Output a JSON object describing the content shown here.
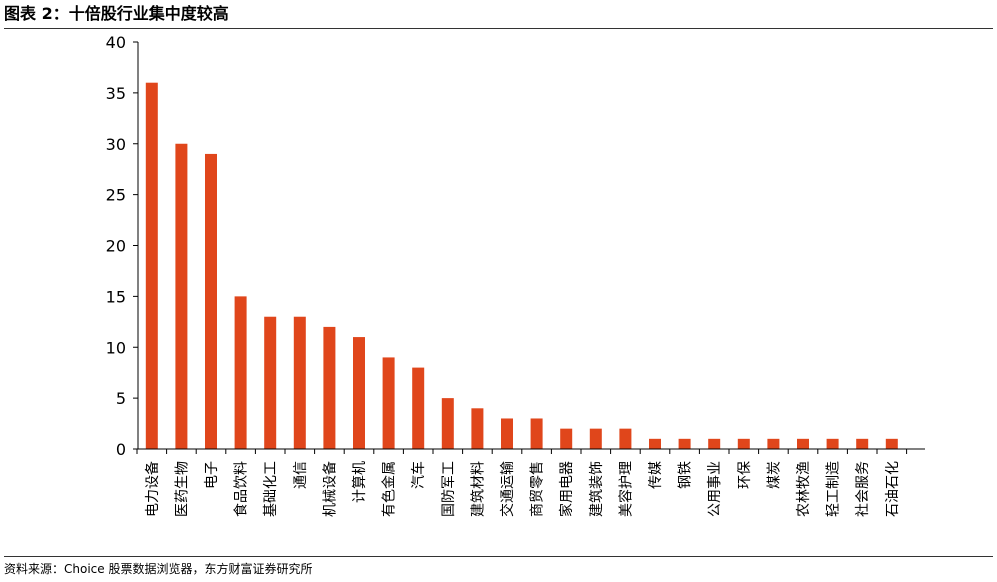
{
  "title": "图表 2：十倍股行业集中度较高",
  "source": "资料来源：Choice 股票数据浏览器，东方财富证券研究所",
  "colors": {
    "bar": "#E0461B",
    "axis": "#000000"
  },
  "chart_data": {
    "type": "bar",
    "title": "",
    "xlabel": "",
    "ylabel": "",
    "ylim": [
      0,
      40
    ],
    "yticks": [
      0,
      5,
      10,
      15,
      20,
      25,
      30,
      35,
      40
    ],
    "grid": false,
    "legend": "none",
    "categories": [
      "电力设备",
      "医药生物",
      "电子",
      "食品饮料",
      "基础化工",
      "通信",
      "机械设备",
      "计算机",
      "有色金属",
      "汽车",
      "国防军工",
      "建筑材料",
      "交通运输",
      "商贸零售",
      "家用电器",
      "建筑装饰",
      "美容护理",
      "传媒",
      "钢铁",
      "公用事业",
      "环保",
      "煤炭",
      "农林牧渔",
      "轻工制造",
      "社会服务",
      "石油石化"
    ],
    "values": [
      36,
      30,
      29,
      15,
      13,
      13,
      12,
      11,
      9,
      8,
      5,
      4,
      3,
      3,
      2,
      2,
      2,
      1,
      1,
      1,
      1,
      1,
      1,
      1,
      1,
      1
    ]
  }
}
